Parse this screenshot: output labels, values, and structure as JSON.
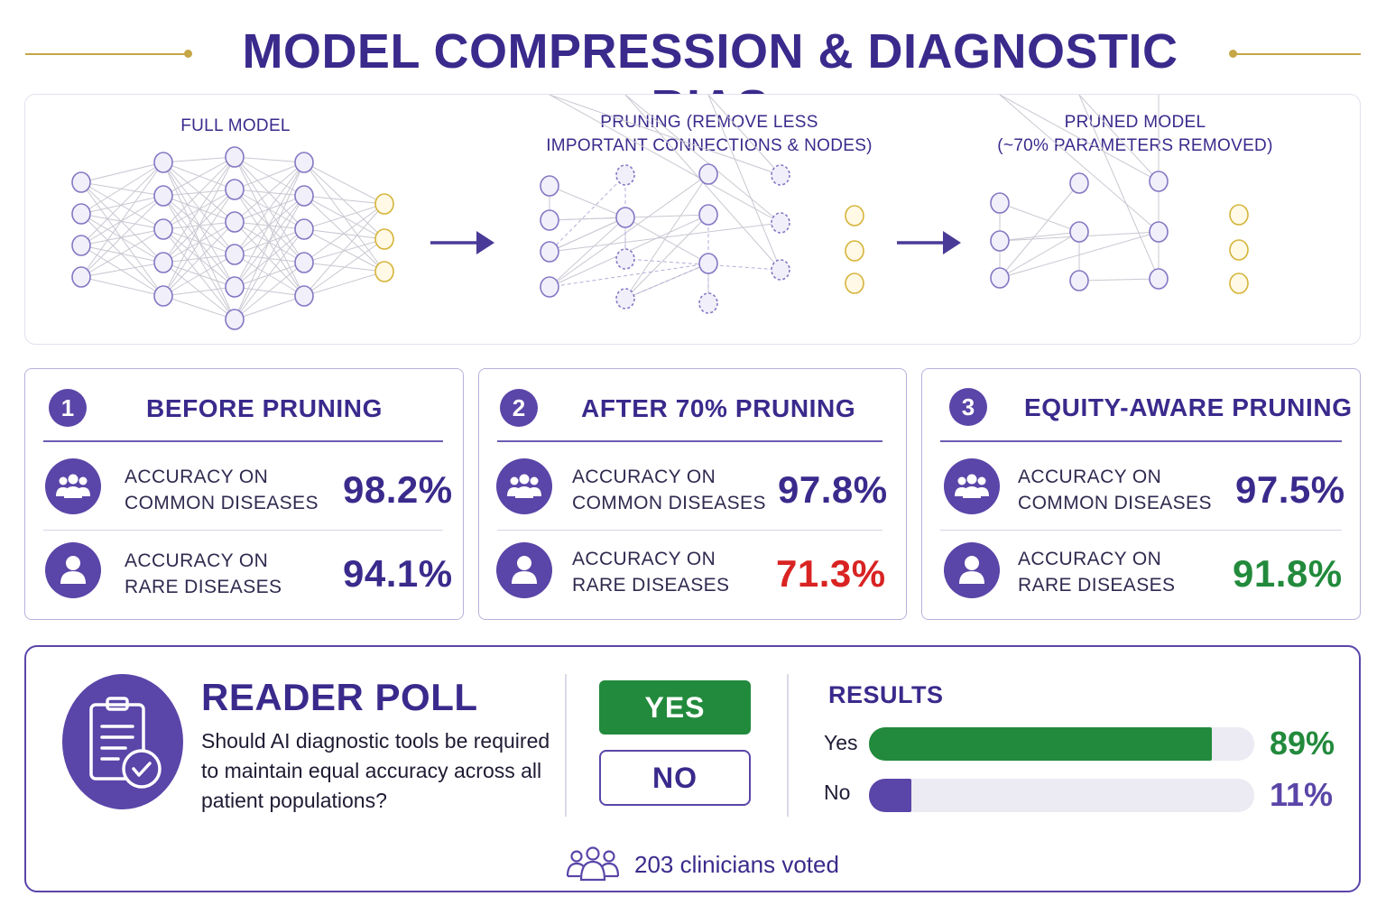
{
  "title": "MODEL COMPRESSION & DIAGNOSTIC BIAS",
  "colors": {
    "primary": "#3a2a8c",
    "accent_gold": "#c6a646",
    "green": "#228a3c",
    "red": "#d92323",
    "purple": "#5a45a8"
  },
  "diagram": {
    "stages": [
      {
        "title_lines": [
          "FULL MODEL"
        ]
      },
      {
        "title_lines": [
          "PRUNING (REMOVE LESS",
          "IMPORTANT CONNECTIONS & NODES)"
        ]
      },
      {
        "title_lines": [
          "PRUNED MODEL",
          "(~70% PARAMETERS REMOVED)"
        ]
      }
    ]
  },
  "cards": [
    {
      "number": "1",
      "title": "BEFORE PRUNING",
      "metrics": [
        {
          "icon": "group-icon",
          "label_lines": [
            "ACCURACY ON",
            "COMMON DISEASES"
          ],
          "value": "98.2%",
          "value_color": "#3a2a8c"
        },
        {
          "icon": "person-icon",
          "label_lines": [
            "ACCURACY ON",
            "RARE DISEASES"
          ],
          "value": "94.1%",
          "value_color": "#3a2a8c"
        }
      ]
    },
    {
      "number": "2",
      "title": "AFTER 70% PRUNING",
      "metrics": [
        {
          "icon": "group-icon",
          "label_lines": [
            "ACCURACY ON",
            "COMMON DISEASES"
          ],
          "value": "97.8%",
          "value_color": "#3a2a8c"
        },
        {
          "icon": "person-icon",
          "label_lines": [
            "ACCURACY ON",
            "RARE DISEASES"
          ],
          "value": "71.3%",
          "value_color": "#d92323"
        }
      ]
    },
    {
      "number": "3",
      "title": "EQUITY-AWARE PRUNING",
      "metrics": [
        {
          "icon": "group-icon",
          "label_lines": [
            "ACCURACY ON",
            "COMMON DISEASES"
          ],
          "value": "97.5%",
          "value_color": "#3a2a8c"
        },
        {
          "icon": "person-icon",
          "label_lines": [
            "ACCURACY ON",
            "RARE DISEASES"
          ],
          "value": "91.8%",
          "value_color": "#228a3c"
        }
      ]
    }
  ],
  "poll": {
    "icon": "clipboard-check-icon",
    "title": "READER POLL",
    "question": "Should AI diagnostic tools be required to maintain equal accuracy across all patient populations?",
    "yes_label": "YES",
    "no_label": "NO",
    "results_title": "RESULTS",
    "results": [
      {
        "label": "Yes",
        "percent_text": "89%",
        "fraction": 0.89,
        "color": "#228a3c"
      },
      {
        "label": "No",
        "percent_text": "11%",
        "fraction": 0.11,
        "color": "#5a45a8"
      }
    ],
    "voters_icon": "people-icon",
    "voters_text": "203 clinicians voted"
  }
}
